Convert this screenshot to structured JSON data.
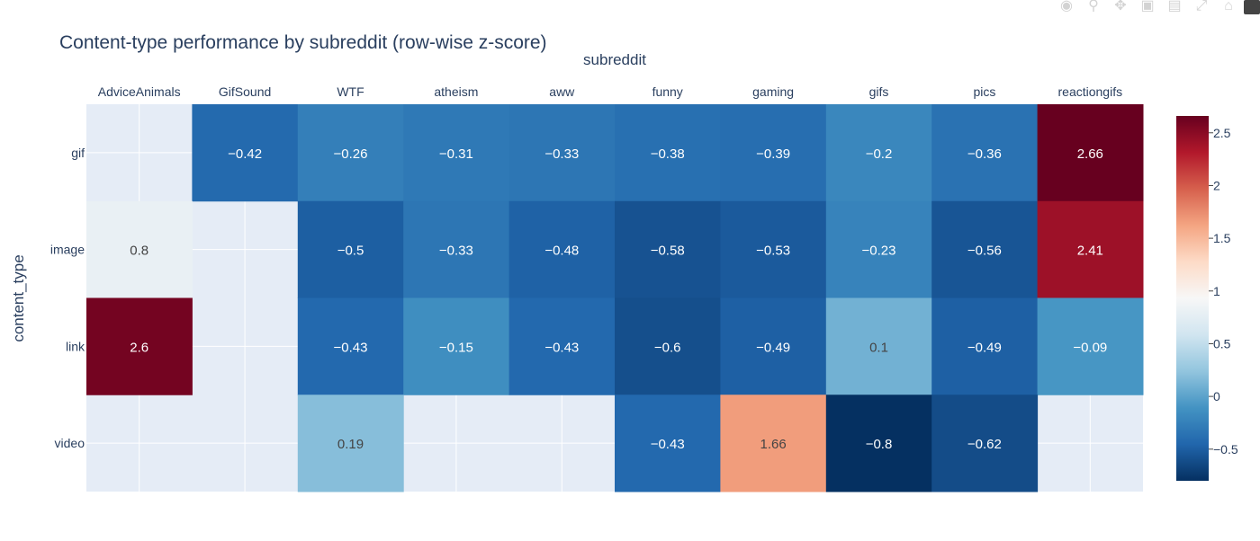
{
  "modebar": {
    "icons": [
      "camera-icon",
      "zoom-icon",
      "pan-icon",
      "zoom-in-icon",
      "zoom-out-icon",
      "autoscale-icon",
      "reset-axes-icon",
      "plotly-logo-icon"
    ]
  },
  "chart_data": {
    "type": "heatmap",
    "title": "Content-type performance by subreddit (row-wise z-score)",
    "xlabel": "subreddit",
    "ylabel": "content_type",
    "x": [
      "AdviceAnimals",
      "GifSound",
      "WTF",
      "atheism",
      "aww",
      "funny",
      "gaming",
      "gifs",
      "pics",
      "reactiongifs"
    ],
    "y": [
      "gif",
      "image",
      "link",
      "video"
    ],
    "z": [
      [
        null,
        -0.42,
        -0.26,
        -0.31,
        -0.33,
        -0.38,
        -0.39,
        -0.2,
        -0.36,
        2.66
      ],
      [
        0.8,
        null,
        -0.5,
        -0.33,
        -0.48,
        -0.58,
        -0.53,
        -0.23,
        -0.56,
        2.41
      ],
      [
        2.6,
        null,
        -0.43,
        -0.15,
        -0.43,
        -0.6,
        -0.49,
        0.1,
        -0.49,
        -0.09
      ],
      [
        null,
        null,
        0.19,
        null,
        null,
        -0.43,
        1.66,
        -0.8,
        -0.62,
        null
      ]
    ],
    "text": [
      [
        "",
        "−0.42",
        "−0.26",
        "−0.31",
        "−0.33",
        "−0.38",
        "−0.39",
        "−0.2",
        "−0.36",
        "2.66"
      ],
      [
        "0.8",
        "",
        "−0.5",
        "−0.33",
        "−0.48",
        "−0.58",
        "−0.53",
        "−0.23",
        "−0.56",
        "2.41"
      ],
      [
        "2.6",
        "",
        "−0.43",
        "−0.15",
        "−0.43",
        "−0.6",
        "−0.49",
        "0.1",
        "−0.49",
        "−0.09"
      ],
      [
        "",
        "",
        "0.19",
        "",
        "",
        "−0.43",
        "1.66",
        "−0.8",
        "−0.62",
        ""
      ]
    ],
    "zmin": -0.8,
    "zmax": 2.66,
    "colorscale": "RdBu_r",
    "colorbar_ticks": [
      2.5,
      2,
      1.5,
      1,
      0.5,
      0,
      -0.5
    ],
    "colorbar_tick_labels": [
      "2.5",
      "2",
      "1.5",
      "1",
      "0.5",
      "0",
      "−0.5"
    ],
    "x_axis_side": "top",
    "missing_color": "#e5ecf6",
    "grid": true
  }
}
